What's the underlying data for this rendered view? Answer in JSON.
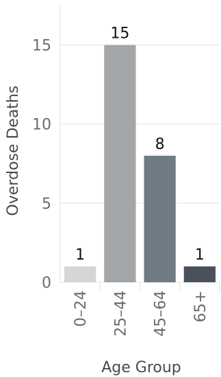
{
  "chart_data": {
    "type": "bar",
    "title": "",
    "xlabel": "Age Group",
    "ylabel": "Overdose Deaths",
    "categories": [
      "0–24",
      "25–44",
      "45–64",
      "65+"
    ],
    "values": [
      1,
      15,
      8,
      1
    ],
    "data_labels": [
      "1",
      "15",
      "8",
      "1"
    ],
    "bar_colors": [
      "#d6d6d6",
      "#a2a6a8",
      "#6e7b83",
      "#4a515c"
    ],
    "ylim": [
      0,
      17.5
    ],
    "yticks": [
      0,
      5,
      10,
      15
    ],
    "ytick_labels": [
      "0",
      "5",
      "10",
      "15"
    ],
    "grid": true,
    "legend": "none"
  }
}
